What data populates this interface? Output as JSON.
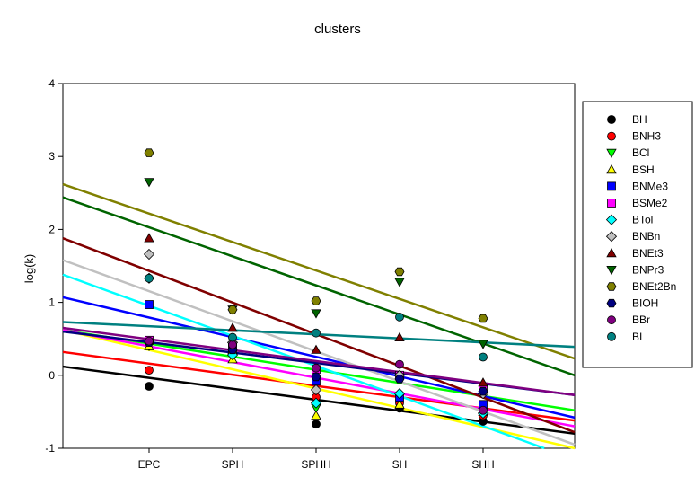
{
  "chart_data": {
    "type": "scatter",
    "title": "clusters",
    "xlabel": "",
    "ylabel": "log(k)",
    "categories": [
      "EPC",
      "SPH",
      "SPHH",
      "SH",
      "SHH"
    ],
    "ylim": [
      -1,
      4
    ],
    "yticks": [
      "-1",
      "0",
      "1",
      "2",
      "3",
      "4"
    ],
    "legend_position": "right",
    "grid": false,
    "series": [
      {
        "name": "BH",
        "marker": "circle",
        "color": "#000000",
        "values": [
          -0.15,
          0.35,
          -0.67,
          -0.45,
          -0.63
        ],
        "fit": [
          0.12,
          -0.8
        ]
      },
      {
        "name": "BNH3",
        "marker": "circle",
        "color": "#ff0000",
        "values": [
          0.07,
          0.3,
          -0.3,
          -0.38,
          -0.55
        ],
        "fit": [
          0.32,
          -0.62
        ]
      },
      {
        "name": "BCl",
        "marker": "triangle-down",
        "color": "#00ff00",
        "values": [
          0.4,
          0.25,
          -0.45,
          -0.3,
          -0.5
        ],
        "fit": [
          0.62,
          -0.48
        ]
      },
      {
        "name": "BSH",
        "marker": "triangle-up",
        "color": "#ffff00",
        "values": [
          0.4,
          0.22,
          -0.55,
          -0.4,
          -0.5
        ],
        "fit": [
          0.62,
          -1.0
        ]
      },
      {
        "name": "BNMe3",
        "marker": "square",
        "color": "#0000ff",
        "values": [
          0.97,
          0.38,
          -0.08,
          -0.3,
          -0.4
        ],
        "fit": [
          1.07,
          -0.58
        ]
      },
      {
        "name": "BSMe2",
        "marker": "square",
        "color": "#ff00ff",
        "values": [
          0.48,
          0.4,
          0.08,
          0.0,
          -0.2
        ],
        "fit": [
          0.62,
          -0.7
        ]
      },
      {
        "name": "BTol",
        "marker": "diamond",
        "color": "#00ffff",
        "values": [
          1.33,
          0.28,
          -0.38,
          -0.25,
          -0.52
        ],
        "fit": [
          1.38,
          -1.15
        ]
      },
      {
        "name": "BNBn",
        "marker": "diamond",
        "color": "#c0c0c0",
        "values": [
          1.66,
          0.45,
          -0.2,
          0.0,
          -0.25
        ],
        "fit": [
          1.58,
          -0.95
        ]
      },
      {
        "name": "BNEt3",
        "marker": "triangle-up",
        "color": "#800000",
        "values": [
          1.88,
          0.65,
          0.35,
          0.52,
          -0.1
        ],
        "fit": [
          1.88,
          -0.78
        ]
      },
      {
        "name": "BNPr3",
        "marker": "triangle-down",
        "color": "#006400",
        "values": [
          2.65,
          0.9,
          0.85,
          1.28,
          0.43
        ],
        "fit": [
          2.44,
          0.0
        ]
      },
      {
        "name": "BNEt2Bn",
        "marker": "hexagon",
        "color": "#808000",
        "values": [
          3.05,
          0.9,
          1.02,
          1.42,
          0.78
        ],
        "fit": [
          2.62,
          0.23
        ]
      },
      {
        "name": "BIOH",
        "marker": "hexagon",
        "color": "#000080",
        "values": [
          0.45,
          0.35,
          -0.02,
          -0.05,
          -0.22
        ],
        "fit": [
          0.6,
          -0.27
        ]
      },
      {
        "name": "BBr",
        "marker": "circle",
        "color": "#800080",
        "values": [
          0.47,
          0.42,
          0.1,
          0.15,
          -0.48
        ],
        "fit": [
          0.65,
          -0.27
        ]
      },
      {
        "name": "BI",
        "marker": "circle",
        "color": "#008080",
        "values": [
          1.33,
          0.52,
          0.58,
          0.8,
          0.25
        ],
        "fit": [
          0.73,
          0.39
        ]
      }
    ]
  }
}
